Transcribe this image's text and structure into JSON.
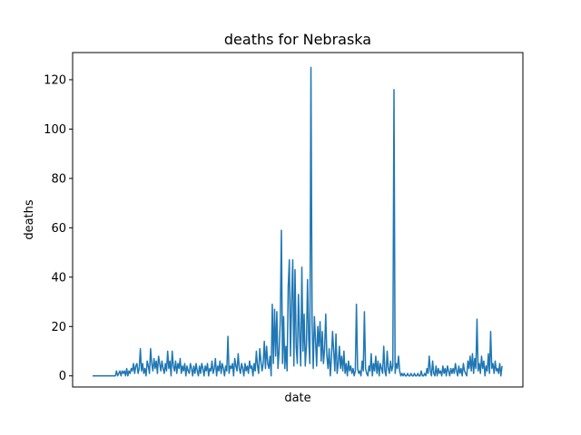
{
  "chart_data": {
    "type": "line",
    "title": "deaths for Nebraska",
    "xlabel": "date",
    "ylabel": "deaths",
    "ylim": [
      -4.5,
      131
    ],
    "yticks": [
      0,
      20,
      40,
      60,
      80,
      100,
      120
    ],
    "xticks": [],
    "grid": false,
    "legend": false,
    "line_color": "#1f77b4",
    "series": [
      {
        "values": [
          0,
          0,
          0,
          0,
          0,
          0,
          0,
          0,
          0,
          0,
          0,
          0,
          0,
          0,
          0,
          0,
          0,
          0,
          0,
          0,
          0,
          2,
          0,
          1,
          2,
          0,
          2,
          1,
          2,
          0,
          3,
          0,
          2,
          1,
          3,
          2,
          5,
          1,
          4,
          5,
          1,
          3,
          11,
          2,
          5,
          1,
          3,
          0,
          6,
          4,
          1,
          11,
          5,
          2,
          7,
          3,
          6,
          1,
          8,
          5,
          2,
          6,
          3,
          1,
          5,
          2,
          10,
          3,
          6,
          0,
          10,
          4,
          2,
          6,
          1,
          5,
          3,
          7,
          1,
          4,
          2,
          5,
          0,
          4,
          2,
          1,
          5,
          3,
          0,
          4,
          1,
          5,
          2,
          0,
          4,
          1,
          5,
          3,
          0,
          4,
          2,
          5,
          0,
          3,
          2,
          6,
          1,
          3,
          7,
          0,
          4,
          2,
          6,
          1,
          5,
          3,
          0,
          4,
          2,
          16,
          1,
          4,
          3,
          5,
          0,
          7,
          4,
          2,
          9,
          3,
          1,
          5,
          3,
          0,
          5,
          2,
          4,
          1,
          6,
          3,
          4,
          0,
          5,
          2,
          10,
          4,
          1,
          11,
          6,
          2,
          5,
          14,
          3,
          12,
          5,
          3,
          8,
          0,
          29,
          5,
          27,
          8,
          26,
          3,
          10,
          22,
          59,
          5,
          24,
          3,
          12,
          2,
          36,
          47,
          8,
          30,
          47,
          4,
          43,
          12,
          5,
          33,
          17,
          4,
          44,
          10,
          25,
          4,
          12,
          39,
          15,
          5,
          125,
          22,
          3,
          24,
          15,
          4,
          20,
          12,
          22,
          6,
          18,
          5,
          11,
          25,
          8,
          3,
          11,
          0,
          7,
          18,
          10,
          2,
          17,
          1,
          5,
          12,
          3,
          8,
          2,
          10,
          1,
          5,
          0,
          6,
          2,
          4,
          1,
          3,
          0,
          2,
          29,
          3,
          1,
          2,
          0,
          6,
          2,
          26,
          3,
          1,
          0,
          4,
          2,
          9,
          0,
          5,
          2,
          8,
          1,
          6,
          0,
          5,
          3,
          1,
          12,
          2,
          0,
          10,
          3,
          1,
          6,
          2,
          4,
          116,
          1,
          5,
          3,
          8,
          2,
          0,
          1,
          0,
          1,
          0,
          0,
          1,
          0,
          0,
          1,
          0,
          0,
          1,
          0,
          0,
          1,
          0,
          0,
          2,
          0,
          0,
          1,
          0,
          3,
          1,
          8,
          2,
          0,
          6,
          1,
          0,
          4,
          0,
          3,
          1,
          2,
          0,
          4,
          1,
          3,
          0,
          4,
          2,
          0,
          3,
          1,
          3,
          1,
          5,
          2,
          0,
          4,
          1,
          3,
          0,
          5,
          2,
          1,
          0,
          6,
          3,
          8,
          2,
          9,
          1,
          7,
          3,
          23,
          2,
          5,
          1,
          8,
          3,
          6,
          0,
          4,
          2,
          9,
          1,
          18,
          3,
          5,
          1,
          6,
          2,
          3,
          1,
          5,
          0,
          4
        ]
      }
    ]
  }
}
